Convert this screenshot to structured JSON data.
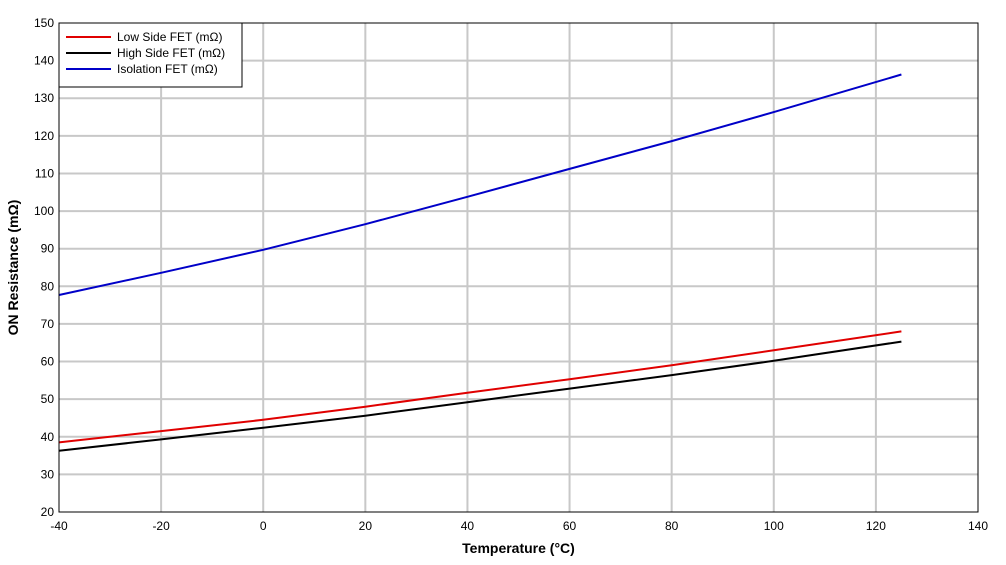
{
  "chart_data": {
    "type": "line",
    "xlabel": "Temperature (°C)",
    "ylabel": "ON Resistance (mΩ)",
    "xlim": [
      -40,
      140
    ],
    "ylim": [
      20,
      150
    ],
    "x_ticks": [
      -40,
      -20,
      0,
      20,
      40,
      60,
      80,
      100,
      120,
      140
    ],
    "y_ticks": [
      20,
      30,
      40,
      50,
      60,
      70,
      80,
      90,
      100,
      110,
      120,
      130,
      140,
      150
    ],
    "grid": true,
    "legend_position": "top-left",
    "series": [
      {
        "name": "Low Side FET (mΩ)",
        "color": "#e00000",
        "x": [
          -40,
          -20,
          0,
          20,
          40,
          60,
          80,
          100,
          125
        ],
        "y": [
          38.5,
          41.5,
          44.5,
          48,
          51.7,
          55.3,
          59,
          63,
          68
        ]
      },
      {
        "name": "High Side FET (mΩ)",
        "color": "#000000",
        "x": [
          -40,
          -20,
          0,
          20,
          40,
          60,
          80,
          100,
          125
        ],
        "y": [
          36.3,
          39.3,
          42.4,
          45.6,
          49.2,
          52.8,
          56.4,
          60.2,
          65.3
        ]
      },
      {
        "name": "Isolation FET (mΩ)",
        "color": "#0000c8",
        "x": [
          -40,
          -20,
          0,
          20,
          40,
          60,
          80,
          100,
          125
        ],
        "y": [
          77.7,
          83.6,
          89.7,
          96.5,
          103.8,
          111.2,
          118.6,
          126.3,
          136.3
        ]
      }
    ]
  }
}
